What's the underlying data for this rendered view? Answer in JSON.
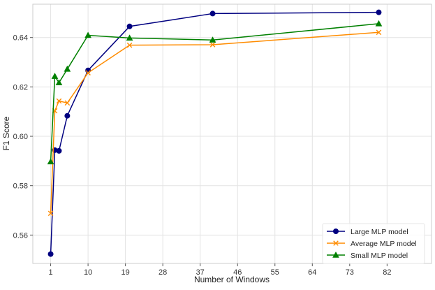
{
  "chart_data": {
    "type": "line",
    "title": "",
    "xlabel": "Number of Windows",
    "ylabel": "F1 Score",
    "x_ticks": [
      1,
      10,
      19,
      28,
      37,
      46,
      55,
      64,
      73,
      82
    ],
    "y_ticks": [
      0.56,
      0.58,
      0.6,
      0.62,
      0.64
    ],
    "xlim": [
      -3.3,
      92.7
    ],
    "ylim": [
      0.5485,
      0.6535
    ],
    "grid": true,
    "legend_position": "lower-right",
    "series": [
      {
        "name": "Large MLP model",
        "color": "#000080",
        "marker": "circle",
        "x": [
          1,
          2,
          3,
          5,
          10,
          20,
          40,
          80
        ],
        "y": [
          0.5523,
          0.5944,
          0.5941,
          0.6083,
          0.6267,
          0.6445,
          0.6497,
          0.6502
        ]
      },
      {
        "name": "Average MLP model",
        "color": "#ff8c00",
        "marker": "x",
        "x": [
          1,
          2,
          3,
          5,
          10,
          20,
          40,
          80
        ],
        "y": [
          0.5688,
          0.6103,
          0.6143,
          0.6135,
          0.6257,
          0.6369,
          0.6371,
          0.6421
        ]
      },
      {
        "name": "Small MLP model",
        "color": "#008000",
        "marker": "triangle",
        "x": [
          1,
          2,
          3,
          5,
          10,
          20,
          40,
          80
        ],
        "y": [
          0.5897,
          0.6243,
          0.6217,
          0.6272,
          0.6409,
          0.6398,
          0.639,
          0.6456
        ]
      }
    ]
  }
}
